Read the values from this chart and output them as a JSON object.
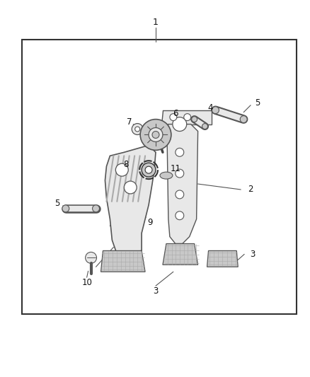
{
  "bg_color": "#ffffff",
  "border_color": "#333333",
  "lc": "#555555",
  "fill_light": "#e8e8e8",
  "fill_mid": "#c8c8c8",
  "fill_dark": "#aaaaaa",
  "fig_width": 4.38,
  "fig_height": 5.33,
  "dpi": 100
}
